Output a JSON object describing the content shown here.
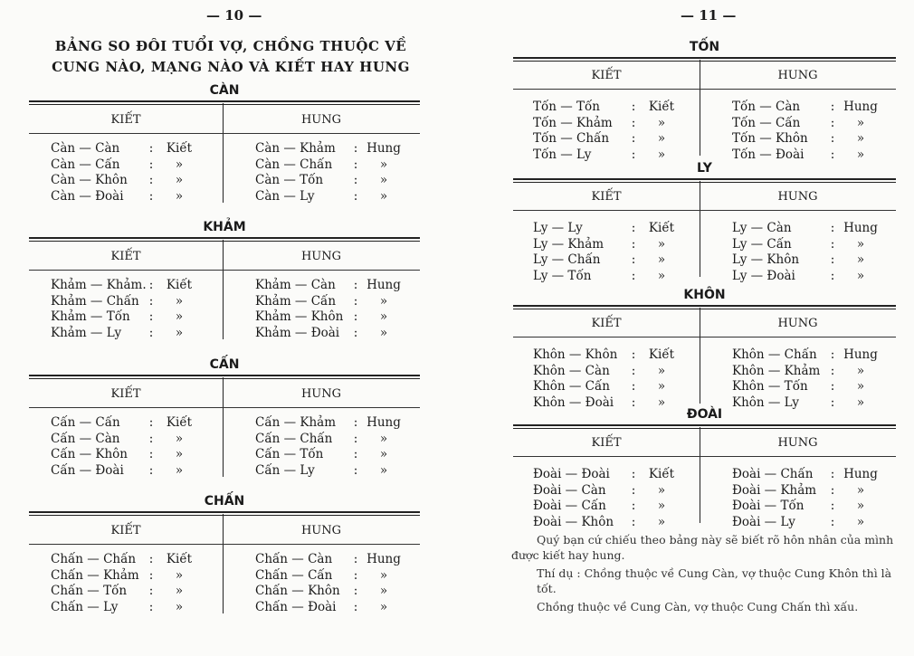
{
  "left_page": {
    "page_number": "— 10 —",
    "title_line1": "BẢNG SO ĐÔI TUỔI VỢ, CHỒNG THUỘC VỀ",
    "title_line2": "CUNG NÀO, MẠNG NÀO VÀ KIẾT HAY HUNG",
    "sections": [
      {
        "name": "CÀN",
        "kiet_header": "KIẾT",
        "hung_header": "HUNG",
        "kiet": [
          [
            "Càn — Càn",
            "Kiết"
          ],
          [
            "Càn — Cấn",
            "»"
          ],
          [
            "Càn — Khôn",
            "»"
          ],
          [
            "Càn — Đoài",
            "»"
          ]
        ],
        "hung": [
          [
            "Càn — Khảm",
            "Hung"
          ],
          [
            "Càn — Chấn",
            "»"
          ],
          [
            "Càn — Tốn",
            "»"
          ],
          [
            "Càn — Ly",
            "»"
          ]
        ]
      },
      {
        "name": "KHẢM",
        "kiet_header": "KIẾT",
        "hung_header": "HUNG",
        "kiet": [
          [
            "Khảm — Khảm.",
            "Kiết"
          ],
          [
            "Khảm — Chấn",
            "»"
          ],
          [
            "Khảm — Tốn",
            "»"
          ],
          [
            "Khảm — Ly",
            "»"
          ]
        ],
        "hung": [
          [
            "Khảm — Càn",
            "Hung"
          ],
          [
            "Khảm — Cấn",
            "»"
          ],
          [
            "Khảm — Khôn",
            "»"
          ],
          [
            "Khảm — Đoài",
            "»"
          ]
        ]
      },
      {
        "name": "CẤN",
        "kiet_header": "KIẾT",
        "hung_header": "HUNG",
        "kiet": [
          [
            "Cấn — Cấn",
            "Kiết"
          ],
          [
            "Cấn — Càn",
            "»"
          ],
          [
            "Cấn — Khôn",
            "»"
          ],
          [
            "Cấn — Đoài",
            "»"
          ]
        ],
        "hung": [
          [
            "Cấn — Khảm",
            "Hung"
          ],
          [
            "Cấn — Chấn",
            "»"
          ],
          [
            "Cấn — Tốn",
            "»"
          ],
          [
            "Cấn — Ly",
            "»"
          ]
        ]
      },
      {
        "name": "CHẤN",
        "kiet_header": "KIẾT",
        "hung_header": "HUNG",
        "kiet": [
          [
            "Chấn — Chấn",
            "Kiết"
          ],
          [
            "Chấn — Khảm",
            "»"
          ],
          [
            "Chấn — Tốn",
            "»"
          ],
          [
            "Chấn — Ly",
            "»"
          ]
        ],
        "hung": [
          [
            "Chấn — Càn",
            "Hung"
          ],
          [
            "Chấn — Cấn",
            "»"
          ],
          [
            "Chấn — Khôn",
            "»"
          ],
          [
            "Chấn — Đoài",
            "»"
          ]
        ]
      }
    ]
  },
  "right_page": {
    "page_number": "— 11 —",
    "sections": [
      {
        "name": "TỐN",
        "kiet_header": "KIẾT",
        "hung_header": "HUNG",
        "kiet": [
          [
            "Tốn — Tốn",
            "Kiết"
          ],
          [
            "Tốn — Khảm",
            "»"
          ],
          [
            "Tốn — Chấn",
            "»"
          ],
          [
            "Tốn — Ly",
            "»"
          ]
        ],
        "hung": [
          [
            "Tốn — Càn",
            "Hung"
          ],
          [
            "Tốn — Cấn",
            "»"
          ],
          [
            "Tốn — Khôn",
            "»"
          ],
          [
            "Tốn — Đoài",
            "»"
          ]
        ]
      },
      {
        "name": "LY",
        "kiet_header": "KIẾT",
        "hung_header": "HUNG",
        "kiet": [
          [
            "Ly — Ly",
            "Kiết"
          ],
          [
            "Ly — Khảm",
            "»"
          ],
          [
            "Ly — Chấn",
            "»"
          ],
          [
            "Ly — Tốn",
            "»"
          ]
        ],
        "hung": [
          [
            "Ly — Càn",
            "Hung"
          ],
          [
            "Ly — Cấn",
            "»"
          ],
          [
            "Ly — Khôn",
            "»"
          ],
          [
            "Ly — Đoài",
            "»"
          ]
        ]
      },
      {
        "name": "KHÔN",
        "kiet_header": "KIẾT",
        "hung_header": "HUNG",
        "kiet": [
          [
            "Khôn — Khôn",
            "Kiết"
          ],
          [
            "Khôn — Càn",
            "»"
          ],
          [
            "Khôn — Cấn",
            "»"
          ],
          [
            "Khôn — Đoài",
            "»"
          ]
        ],
        "hung": [
          [
            "Khôn — Chấn",
            "Hung"
          ],
          [
            "Khôn — Khảm",
            "»"
          ],
          [
            "Khôn — Tốn",
            "»"
          ],
          [
            "Khôn — Ly",
            "»"
          ]
        ]
      },
      {
        "name": "ĐOÀI",
        "kiet_header": "KIẾT",
        "hung_header": "HUNG",
        "kiet": [
          [
            "Đoài — Đoài",
            "Kiết"
          ],
          [
            "Đoài — Càn",
            "»"
          ],
          [
            "Đoài — Cấn",
            "»"
          ],
          [
            "Đoài — Khôn",
            "»"
          ]
        ],
        "hung": [
          [
            "Đoài — Chấn",
            "Hung"
          ],
          [
            "Đoài — Khảm",
            "»"
          ],
          [
            "Đoài — Tốn",
            "»"
          ],
          [
            "Đoài — Ly",
            "»"
          ]
        ]
      }
    ],
    "note_1": "Quý bạn cứ chiếu theo bảng này sẽ biết rõ hôn nhân của mình được kiết hay hung.",
    "note_2": "Thí dụ : Chồng thuộc về Cung Càn, vợ thuộc Cung Khôn thì là tốt.",
    "note_3": "Chồng thuộc về Cung Càn, vợ thuộc Cung Chấn thì xấu."
  }
}
